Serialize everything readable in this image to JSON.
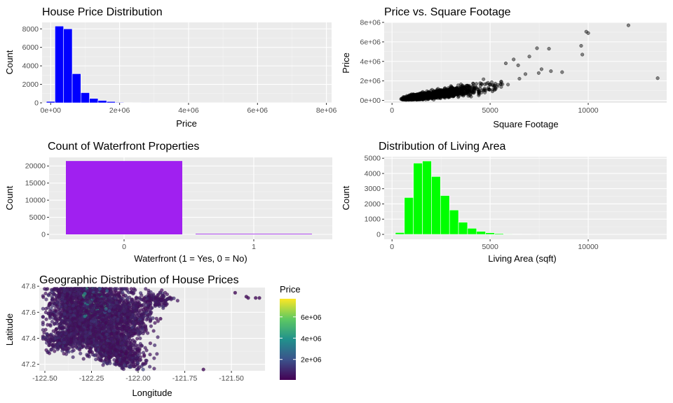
{
  "chart_data": [
    {
      "type": "bar",
      "title": "House Price Distribution",
      "xlabel": "Price",
      "ylabel": "Count",
      "xlim": [
        -250000,
        8150000
      ],
      "ylim": [
        0,
        8700
      ],
      "xticks": [
        "0e+00",
        "2e+06",
        "4e+06",
        "6e+06",
        "8e+06"
      ],
      "xtick_values": [
        0,
        2000000,
        4000000,
        6000000,
        8000000
      ],
      "yticks": [
        "0",
        "2000",
        "4000",
        "6000",
        "8000"
      ],
      "ytick_values": [
        0,
        2000,
        4000,
        6000,
        8000
      ],
      "bin_width": 250000,
      "bin_centers": [
        0,
        250000,
        500000,
        750000,
        1000000,
        1250000,
        1500000,
        1750000,
        2000000,
        2250000,
        2500000,
        2750000
      ],
      "values": [
        150,
        8300,
        8000,
        3150,
        1100,
        480,
        260,
        140,
        60,
        30,
        20,
        10
      ],
      "fill": "#0000ff"
    },
    {
      "type": "scatter",
      "title": "Price vs. Square Footage",
      "xlabel": "Square Footage",
      "ylabel": "Price",
      "xlim": [
        -400,
        14000
      ],
      "ylim": [
        -250000,
        8000000
      ],
      "xticks": [
        "0",
        "5000",
        "10000"
      ],
      "xtick_values": [
        0,
        5000,
        10000
      ],
      "yticks": [
        "0e+00",
        "2e+06",
        "4e+06",
        "6e+06",
        "8e+06"
      ],
      "ytick_values": [
        0,
        2000000,
        4000000,
        6000000,
        8000000
      ],
      "highlights": [
        [
          12050,
          7700000
        ],
        [
          9900,
          7050000
        ],
        [
          10000,
          6900000
        ],
        [
          13540,
          2280000
        ],
        [
          9640,
          5600000
        ],
        [
          9700,
          4700000
        ],
        [
          8000,
          5300000
        ],
        [
          8670,
          2900000
        ],
        [
          7390,
          5350000
        ],
        [
          7000,
          4500000
        ],
        [
          6430,
          3600000
        ],
        [
          7620,
          3200000
        ],
        [
          8100,
          3000000
        ],
        [
          6200,
          4200000
        ],
        [
          5800,
          3800000
        ],
        [
          6800,
          2700000
        ]
      ],
      "point_color": "#000000"
    },
    {
      "type": "bar",
      "title": "Count of Waterfront Properties",
      "xlabel": "Waterfront (1 = Yes, 0 = No)",
      "ylabel": "Count",
      "categories": [
        "0",
        "1"
      ],
      "values": [
        21450,
        163
      ],
      "ylim": [
        0,
        22500
      ],
      "yticks": [
        "0",
        "5000",
        "10000",
        "15000",
        "20000"
      ],
      "ytick_values": [
        0,
        5000,
        10000,
        15000,
        20000
      ],
      "fill": "#a020f0"
    },
    {
      "type": "bar",
      "title": "Distribution of Living Area",
      "xlabel": "Living Area (sqft)",
      "ylabel": "Count",
      "xlim": [
        -400,
        14000
      ],
      "ylim": [
        0,
        5100
      ],
      "xticks": [
        "0",
        "5000",
        "10000"
      ],
      "xtick_values": [
        0,
        5000,
        10000
      ],
      "yticks": [
        "0",
        "1000",
        "2000",
        "3000",
        "4000",
        "5000"
      ],
      "ytick_values": [
        0,
        1000,
        2000,
        3000,
        4000,
        5000
      ],
      "bin_width": 460,
      "bin_centers": [
        400,
        860,
        1320,
        1780,
        2240,
        2700,
        3160,
        3620,
        4080,
        4540,
        5000,
        5460,
        5920,
        6380,
        6840,
        7300
      ],
      "values": [
        120,
        2420,
        4680,
        4820,
        3800,
        2550,
        1600,
        800,
        400,
        200,
        110,
        60,
        30,
        20,
        15,
        10
      ],
      "fill": "#00ff00"
    },
    {
      "type": "scatter",
      "title": "Geographic Distribution of House Prices",
      "xlabel": "Longitude",
      "ylabel": "Latitude",
      "xlim": [
        -122.53,
        -121.32
      ],
      "ylim": [
        47.15,
        47.79
      ],
      "xticks": [
        "-122.50",
        "-122.25",
        "-122.00",
        "-121.75",
        "-121.50"
      ],
      "xtick_values": [
        -122.5,
        -122.25,
        -122.0,
        -121.75,
        -121.5
      ],
      "yticks": [
        "47.2",
        "47.4",
        "47.6",
        "47.8"
      ],
      "ytick_values": [
        47.2,
        47.4,
        47.6,
        47.8
      ],
      "legend_title": "Price",
      "legend_ticks": [
        "2e+06",
        "4e+06",
        "6e+06"
      ],
      "legend_tick_values": [
        2000000,
        4000000,
        6000000
      ],
      "legend_range": [
        75000,
        7700000
      ],
      "colormap": [
        "#440154",
        "#3b528b",
        "#21918c",
        "#5ec962",
        "#fde725"
      ],
      "outliers": [
        [
          -121.65,
          47.16
        ],
        [
          -121.42,
          47.72
        ],
        [
          -121.37,
          47.71
        ],
        [
          -121.35,
          47.71
        ],
        [
          -121.41,
          47.71
        ],
        [
          -121.48,
          47.75
        ],
        [
          -121.95,
          47.68
        ],
        [
          -121.88,
          47.55
        ]
      ]
    }
  ]
}
